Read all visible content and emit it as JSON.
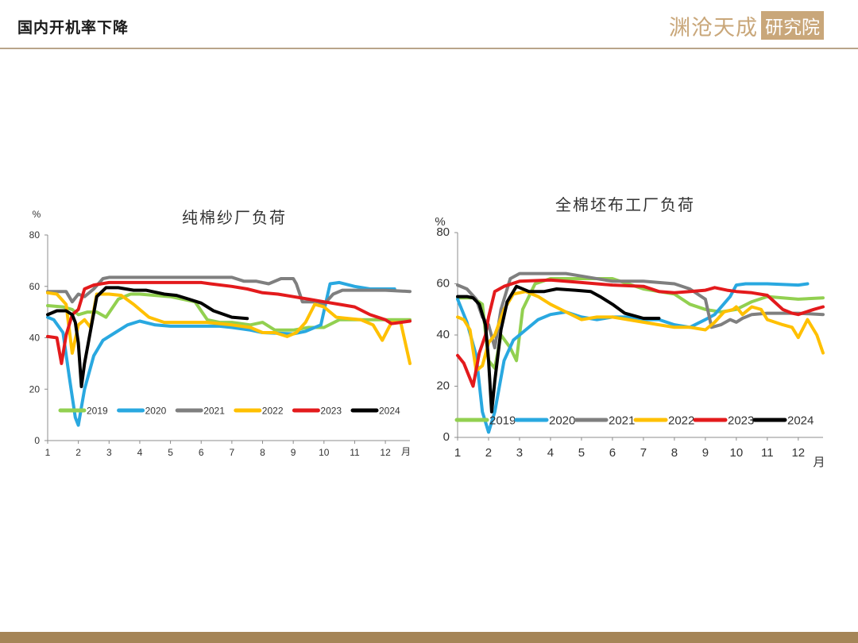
{
  "header": {
    "title": "国内开机率下降",
    "logo_text": "渊沧天成",
    "logo_box": "研究院"
  },
  "colors": {
    "2019": "#92d050",
    "2020": "#29a8e0",
    "2021": "#7f7f7f",
    "2022": "#ffc000",
    "2023": "#e31a1c",
    "2024": "#000000",
    "accent": "#c9a77a"
  },
  "chart_data": [
    {
      "type": "line",
      "title": "纯棉纱厂负荷",
      "ylabel": "%",
      "xlabel": "月",
      "ylim": [
        0,
        80
      ],
      "xlim": [
        1,
        12.8
      ],
      "y_ticks": [
        "0",
        "20",
        "40",
        "60",
        "80"
      ],
      "x_ticks": [
        "1",
        "2",
        "3",
        "4",
        "5",
        "6",
        "7",
        "8",
        "9",
        "10",
        "11",
        "12"
      ],
      "legend_position": "bottom-inside",
      "grid": false,
      "series": [
        {
          "name": "2019",
          "x": [
            1,
            1.5,
            1.8,
            2,
            2.3,
            2.6,
            2.9,
            3.3,
            3.7,
            4,
            5,
            5.8,
            6.2,
            6.6,
            7,
            7.6,
            8,
            8.4,
            9,
            9.5,
            10,
            10.5,
            11,
            11.5,
            12,
            12.8
          ],
          "y": [
            52.5,
            52,
            51,
            49,
            50,
            50,
            48,
            55,
            57,
            57,
            56,
            54,
            47,
            46,
            46,
            45,
            46,
            43,
            43,
            44,
            44,
            47,
            47,
            47,
            47,
            47
          ]
        },
        {
          "name": "2020",
          "x": [
            1,
            1.2,
            1.5,
            1.7,
            1.9,
            2,
            2.2,
            2.5,
            2.8,
            3.2,
            3.6,
            4,
            4.5,
            5,
            6,
            6.6,
            7,
            7.6,
            8,
            9,
            9.4,
            9.9,
            10.2,
            10.5,
            11,
            11.5,
            12,
            12.3
          ],
          "y": [
            48,
            47,
            42,
            25,
            9,
            6,
            20,
            33,
            39,
            42,
            45,
            46.5,
            45,
            44.5,
            44.5,
            44.5,
            44,
            43,
            42,
            41.5,
            42.5,
            45,
            61,
            61.5,
            60,
            59,
            59,
            59
          ]
        },
        {
          "name": "2021",
          "x": [
            1,
            1.6,
            1.8,
            2,
            2.2,
            2.5,
            2.8,
            3,
            4,
            5,
            6,
            7,
            7.4,
            7.8,
            8.2,
            8.6,
            9,
            9.1,
            9.3,
            9.8,
            10,
            10.3,
            10.6,
            11,
            12,
            12.8
          ],
          "y": [
            58,
            58,
            54,
            57,
            56,
            59,
            63,
            63.5,
            63.5,
            63.5,
            63.5,
            63.5,
            62,
            62,
            61,
            63,
            63,
            61,
            54,
            54,
            53,
            57,
            58.5,
            58.5,
            58.5,
            58
          ]
        },
        {
          "name": "2022",
          "x": [
            1,
            1.3,
            1.6,
            1.8,
            2,
            2.2,
            2.4,
            2.6,
            3,
            3.4,
            3.8,
            4.3,
            4.8,
            5.5,
            6.2,
            7,
            7.6,
            8,
            8.4,
            8.8,
            9.1,
            9.4,
            9.7,
            10,
            10.4,
            10.8,
            11.2,
            11.6,
            11.9,
            12.2,
            12.5,
            12.8
          ],
          "y": [
            57.5,
            57,
            53,
            34,
            45,
            47,
            44,
            57,
            57,
            56.5,
            53,
            48,
            46,
            46,
            46,
            45,
            44,
            42,
            42,
            40.5,
            42,
            46,
            53,
            52,
            48,
            47.5,
            47,
            45,
            39,
            46,
            46,
            30
          ]
        },
        {
          "name": "2023",
          "x": [
            1,
            1.3,
            1.45,
            1.6,
            1.8,
            2,
            2.2,
            2.5,
            3,
            4,
            5,
            6,
            6.3,
            7,
            7.5,
            8,
            8.5,
            9,
            9.5,
            10,
            10.5,
            11,
            11.5,
            12,
            12.2,
            12.5,
            12.8
          ],
          "y": [
            40.5,
            40,
            30,
            41,
            49,
            51,
            59,
            60.5,
            61.5,
            61.5,
            61.5,
            61.5,
            61,
            60,
            59,
            57.5,
            57,
            56,
            55,
            54,
            53,
            52,
            49,
            47,
            45.5,
            46,
            46.5
          ]
        },
        {
          "name": "2024",
          "x": [
            1,
            1.3,
            1.6,
            1.8,
            1.9,
            2,
            2.1,
            2.2,
            2.4,
            2.6,
            2.9,
            3.3,
            3.8,
            4.2,
            4.8,
            5.2,
            5.6,
            6,
            6.4,
            7,
            7.5
          ],
          "y": [
            49,
            50.5,
            50.5,
            49,
            46,
            38,
            21,
            30,
            43,
            56,
            59.5,
            59.5,
            58.5,
            58.5,
            57,
            56.5,
            55,
            53.5,
            50.5,
            48,
            47.5
          ]
        }
      ]
    },
    {
      "type": "line",
      "title": "全棉坯布工厂负荷",
      "ylabel": "%",
      "xlabel": "月",
      "ylim": [
        0,
        80
      ],
      "xlim": [
        1,
        12.8
      ],
      "y_ticks": [
        "0",
        "20",
        "40",
        "60",
        "80"
      ],
      "x_ticks": [
        "1",
        "2",
        "3",
        "4",
        "5",
        "6",
        "7",
        "8",
        "9",
        "10",
        "11",
        "12"
      ],
      "legend_position": "bottom-inside",
      "grid": false,
      "series": [
        {
          "name": "2019",
          "x": [
            1,
            1.5,
            1.8,
            2,
            2.2,
            2.4,
            2.7,
            2.9,
            3.1,
            3.5,
            4,
            5,
            6,
            6.5,
            7,
            8,
            8.5,
            9,
            9.5,
            10,
            10.5,
            11,
            12,
            12.8
          ],
          "y": [
            54.5,
            54.5,
            52,
            30,
            27,
            40,
            35,
            30,
            50,
            60,
            62,
            62,
            62,
            60,
            58,
            56,
            52,
            50,
            49,
            50,
            53,
            55,
            54,
            54.5
          ]
        },
        {
          "name": "2020",
          "x": [
            1,
            1.3,
            1.6,
            1.8,
            2,
            2.2,
            2.5,
            2.8,
            3.2,
            3.6,
            4,
            4.5,
            5,
            5.5,
            6,
            6.5,
            7,
            7.5,
            8,
            8.5,
            9,
            9.3,
            9.8,
            10,
            10.3,
            10.7,
            11,
            12,
            12.3
          ],
          "y": [
            54,
            45,
            32,
            10,
            2,
            10,
            30,
            38,
            42,
            46,
            48,
            49,
            47,
            46,
            47,
            47,
            46,
            46,
            44,
            43,
            46,
            48,
            55,
            59.5,
            60,
            60,
            60,
            59.5,
            60
          ]
        },
        {
          "name": "2021",
          "x": [
            1,
            1.3,
            1.6,
            1.8,
            2,
            2.2,
            2.4,
            2.7,
            3,
            3.5,
            4,
            4.5,
            5,
            6,
            7,
            8,
            8.5,
            9,
            9.2,
            9.5,
            9.8,
            10,
            10.2,
            10.5,
            11,
            12,
            12.8
          ],
          "y": [
            59.5,
            58,
            54,
            47,
            44,
            35,
            50,
            62,
            64,
            64,
            64,
            64,
            63,
            61,
            61,
            60,
            58,
            54,
            43,
            44,
            46,
            45,
            46.5,
            48,
            48.5,
            48.5,
            48
          ]
        },
        {
          "name": "2022",
          "x": [
            1,
            1.2,
            1.4,
            1.6,
            1.8,
            2,
            2.2,
            2.5,
            2.8,
            3.2,
            3.6,
            4,
            4.5,
            5,
            5.5,
            6,
            6.5,
            7,
            7.5,
            8,
            8.5,
            9,
            9.3,
            9.6,
            9.9,
            10,
            10.2,
            10.5,
            10.8,
            11,
            11.5,
            11.8,
            12,
            12.3,
            12.6,
            12.8
          ],
          "y": [
            47,
            46,
            42,
            26,
            28,
            37,
            40,
            50,
            56,
            57,
            55,
            52,
            49,
            46,
            47,
            47,
            46,
            45,
            44,
            43,
            43,
            42,
            45,
            49,
            50,
            51,
            48,
            51,
            50,
            46,
            44,
            43,
            39,
            46,
            40,
            33
          ]
        },
        {
          "name": "2023",
          "x": [
            1,
            1.2,
            1.5,
            1.7,
            1.9,
            2,
            2.2,
            2.5,
            3,
            4,
            5,
            6,
            7,
            7.5,
            8,
            8.5,
            9,
            9.3,
            9.7,
            10,
            10.5,
            11,
            11.5,
            11.8,
            12,
            12.5,
            12.8
          ],
          "y": [
            32,
            29,
            20,
            33,
            40,
            47,
            57,
            59,
            61,
            61.5,
            60.5,
            59.5,
            59,
            57,
            56.5,
            57,
            57.5,
            58.5,
            57.5,
            57,
            56.5,
            55.5,
            50,
            48.5,
            48,
            50,
            51
          ]
        },
        {
          "name": "2024",
          "x": [
            1,
            1.3,
            1.5,
            1.7,
            1.9,
            2,
            2.1,
            2.2,
            2.4,
            2.6,
            2.9,
            3.3,
            3.8,
            4.2,
            4.8,
            5.3,
            5.6,
            6,
            6.4,
            7,
            7.5
          ],
          "y": [
            55,
            55,
            54.5,
            52,
            44,
            30,
            10,
            22,
            42,
            53,
            59,
            57,
            57,
            58,
            57.5,
            57,
            55,
            52,
            48.5,
            46.5,
            46.5
          ]
        }
      ]
    }
  ]
}
